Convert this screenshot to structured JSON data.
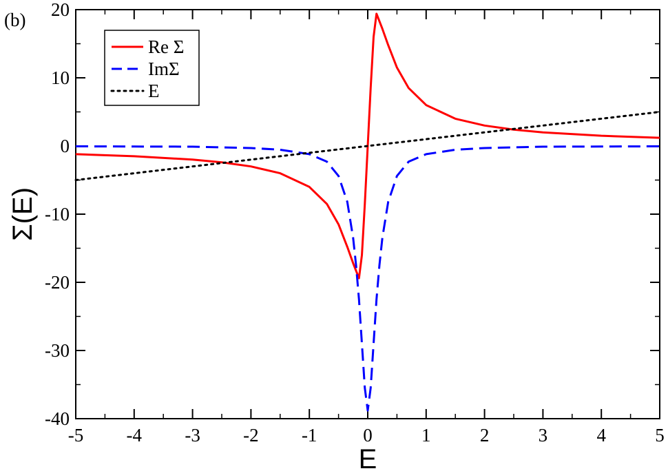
{
  "panel_label": "(b)",
  "chart_data": {
    "type": "line",
    "title": "",
    "xlabel": "E",
    "ylabel": "Σ(E)",
    "xlim": [
      -5,
      5
    ],
    "ylim": [
      -40,
      20
    ],
    "x_ticks": [
      -5,
      -4,
      -3,
      -2,
      -1,
      0,
      1,
      2,
      3,
      4,
      5
    ],
    "x_tick_labels": [
      "-5",
      "-4",
      "-3",
      "-2",
      "-1",
      "0",
      "1",
      "2",
      "3",
      "4",
      "5"
    ],
    "y_ticks": [
      -40,
      -30,
      -20,
      -10,
      0,
      10,
      20
    ],
    "y_tick_labels": [
      "-40",
      "-30",
      "-20",
      "-10",
      "0",
      "10",
      "20"
    ],
    "grid": false,
    "legend_position": "top-left",
    "series": [
      {
        "name": "Re Σ",
        "color": "#ff0000",
        "dash": "solid",
        "x": [
          -5,
          -4,
          -3,
          -2.5,
          -2,
          -1.5,
          -1,
          -0.7,
          -0.5,
          -0.35,
          -0.25,
          -0.15,
          -0.1,
          -0.05,
          0,
          0.05,
          0.1,
          0.15,
          0.25,
          0.35,
          0.5,
          0.7,
          1,
          1.5,
          2,
          2.5,
          3,
          4,
          5
        ],
        "y": [
          -1.2,
          -1.5,
          -2.0,
          -2.4,
          -3.0,
          -4.0,
          -6.0,
          -8.5,
          -11.5,
          -14.8,
          -17.2,
          -19.4,
          -16.0,
          -8.5,
          0,
          8.5,
          16.0,
          19.4,
          17.2,
          14.8,
          11.5,
          8.5,
          6.0,
          4.0,
          3.0,
          2.4,
          2.0,
          1.5,
          1.2
        ]
      },
      {
        "name": "ImΣ",
        "color": "#0000ff",
        "dash": "dashed",
        "x": [
          -5,
          -4,
          -3,
          -2,
          -1.5,
          -1,
          -0.7,
          -0.5,
          -0.35,
          -0.25,
          -0.2,
          -0.15,
          -0.1,
          -0.05,
          0,
          0.05,
          0.1,
          0.15,
          0.2,
          0.25,
          0.35,
          0.5,
          0.7,
          1,
          1.5,
          2,
          3,
          4,
          5
        ],
        "y": [
          -0.05,
          -0.08,
          -0.1,
          -0.3,
          -0.55,
          -1.2,
          -2.3,
          -4.4,
          -8.2,
          -13.5,
          -17.5,
          -22.5,
          -29.0,
          -35.5,
          -38.8,
          -35.5,
          -29.0,
          -22.5,
          -17.5,
          -13.5,
          -8.2,
          -4.4,
          -2.3,
          -1.2,
          -0.55,
          -0.3,
          -0.1,
          -0.08,
          -0.05
        ]
      },
      {
        "name": "E",
        "color": "#000000",
        "dash": "dotted",
        "x": [
          -5,
          5
        ],
        "y": [
          -5,
          5
        ]
      }
    ]
  }
}
